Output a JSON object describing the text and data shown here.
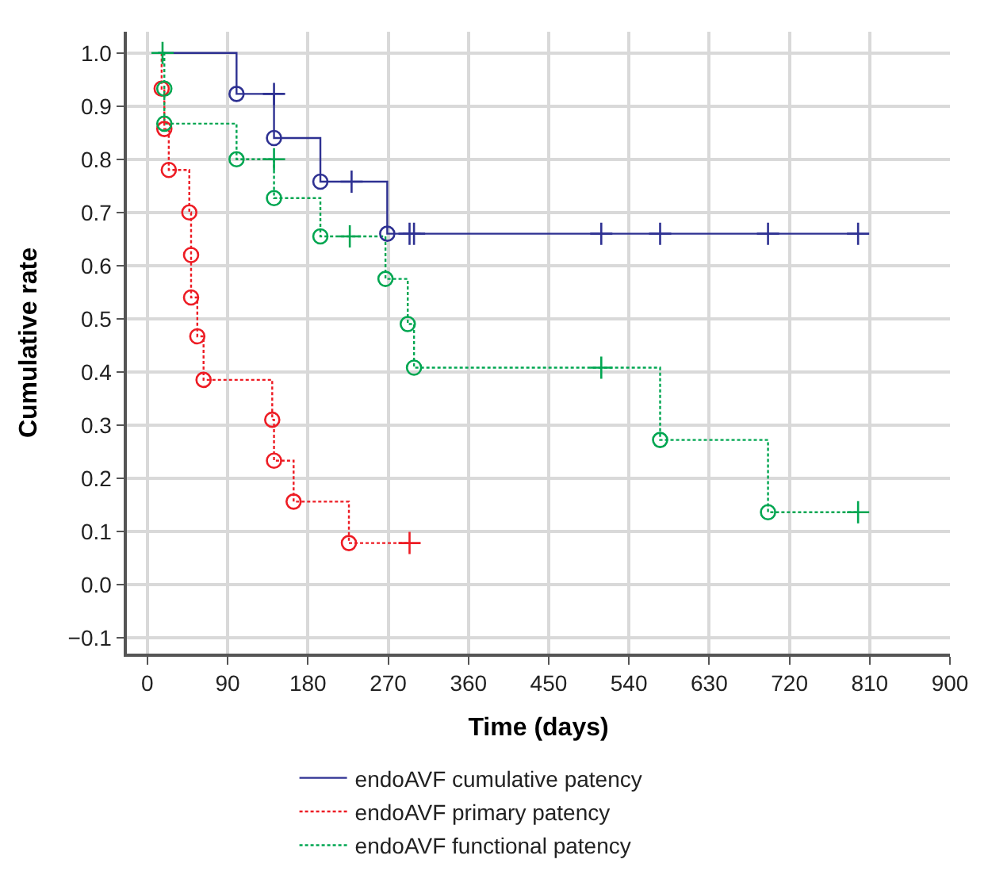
{
  "chart_data": {
    "type": "step",
    "xlabel": "Time (days)",
    "ylabel": "Cumulative rate",
    "xlim": [
      -23,
      900
    ],
    "xticks": [
      0,
      90,
      180,
      270,
      360,
      450,
      540,
      630,
      720,
      810,
      900
    ],
    "ylim": [
      -0.13,
      1.04
    ],
    "yticks": [
      {
        "value": -0.1,
        "label": "−0.1"
      },
      {
        "value": 0,
        "label": "0.0"
      },
      {
        "value": 0.1,
        "label": "0.1"
      },
      {
        "value": 0.2,
        "label": "0.2"
      },
      {
        "value": 0.3,
        "label": "0.3"
      },
      {
        "value": 0.4,
        "label": "0.4"
      },
      {
        "value": 0.5,
        "label": "0.5"
      },
      {
        "value": 0.6,
        "label": "0.6"
      },
      {
        "value": 0.7,
        "label": "0.7"
      },
      {
        "value": 0.8,
        "label": "0.8"
      },
      {
        "value": 0.9,
        "label": "0.9"
      },
      {
        "value": 1.0,
        "label": "1.0"
      }
    ],
    "grid": true,
    "legend": "bottom",
    "series": [
      {
        "name": "endoAVF cumulative patency",
        "color": "#2e3192",
        "line_style": "solid",
        "x": [
          12,
          100,
          142,
          194,
          269,
          797
        ],
        "values": [
          1.0,
          0.923,
          0.84,
          0.758,
          0.66,
          0.66
        ]
      },
      {
        "name": "endoAVF primary patency",
        "color": "#ed1c24",
        "line_style": "dotted",
        "x": [
          16,
          16,
          19,
          24,
          47,
          49,
          49,
          56,
          63,
          140,
          142,
          164,
          226,
          294
        ],
        "values": [
          1.0,
          0.933,
          0.857,
          0.78,
          0.7,
          0.62,
          0.54,
          0.467,
          0.385,
          0.31,
          0.233,
          0.156,
          0.078,
          0.078
        ]
      },
      {
        "name": "endoAVF functional patency",
        "color": "#00a651",
        "line_style": "dotted",
        "x": [
          12,
          19,
          19,
          100,
          142,
          194,
          267,
          292,
          299,
          575,
          696,
          797
        ],
        "values": [
          1.0,
          0.933,
          0.867,
          0.8,
          0.727,
          0.655,
          0.575,
          0.49,
          0.408,
          0.272,
          0.136,
          0.136
        ]
      },
      {
        "color": "#2e3192",
        "type": "scatter",
        "marker": "circle",
        "x": [
          100,
          142,
          194,
          269
        ],
        "values": [
          0.923,
          0.84,
          0.758,
          0.66
        ]
      },
      {
        "color": "#2e3192",
        "type": "scatter",
        "marker": "cross",
        "x": [
          142,
          229,
          294,
          299,
          509,
          575,
          696,
          797
        ],
        "values": [
          0.923,
          0.758,
          0.66,
          0.66,
          0.66,
          0.66,
          0.66,
          0.66
        ]
      },
      {
        "color": "#ed1c24",
        "type": "scatter",
        "marker": "circle",
        "x": [
          16,
          19,
          24,
          47,
          49,
          49,
          56,
          63,
          140,
          142,
          164,
          226
        ],
        "values": [
          0.933,
          0.857,
          0.78,
          0.7,
          0.62,
          0.54,
          0.467,
          0.385,
          0.31,
          0.233,
          0.156,
          0.078
        ]
      },
      {
        "color": "#ed1c24",
        "type": "scatter",
        "marker": "cross",
        "x": [
          294
        ],
        "values": [
          0.078
        ]
      },
      {
        "color": "#00a651",
        "type": "scatter",
        "marker": "circle",
        "x": [
          19,
          19,
          100,
          142,
          194,
          267,
          292,
          299,
          575,
          696
        ],
        "values": [
          0.933,
          0.867,
          0.8,
          0.727,
          0.655,
          0.575,
          0.49,
          0.408,
          0.272,
          0.136
        ]
      },
      {
        "color": "#00a651",
        "type": "scatter",
        "marker": "cross",
        "x": [
          17,
          142,
          227,
          509,
          797
        ],
        "values": [
          1.0,
          0.8,
          0.655,
          0.408,
          0.136
        ]
      }
    ]
  }
}
